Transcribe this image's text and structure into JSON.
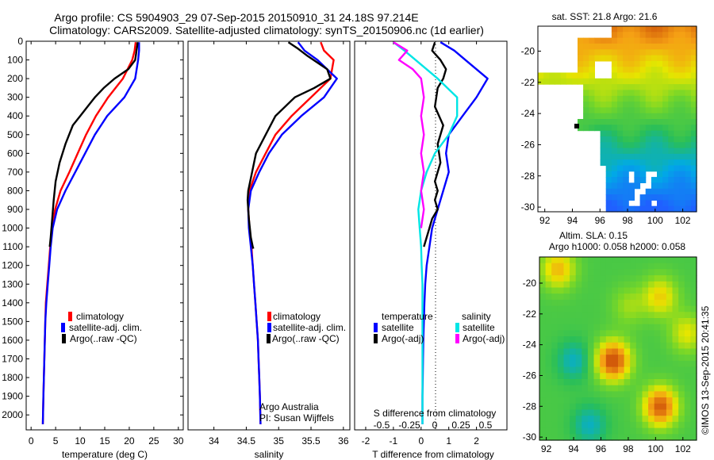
{
  "title_line1": "Argo profile: CS 5904903_29 07-Sep-2015 20150910_31 24.18S 97.214E",
  "title_line2": "Climatology: CARS2009. Satellite-adjusted climatology: synTS_20150906.nc (1d earlier)",
  "credit": "Argo Australia",
  "pi": "PI: Susan Wijffels",
  "stamp": "©IMOS 13-Sep-2015 20:41:35",
  "colors": {
    "clim": "#ff0000",
    "sat": "#0000ff",
    "argo": "#000000",
    "sat_salt": "#00e5e5",
    "argo_salt": "#ff00ff"
  },
  "chart_data": [
    {
      "type": "line",
      "xlabel": "temperature (deg C)",
      "ylabel": "",
      "xlim": [
        -1,
        31
      ],
      "ylim": [
        2080,
        0
      ],
      "y_reversed": true,
      "xticks": [
        0,
        5,
        10,
        15,
        20,
        25,
        30
      ],
      "yticks": [
        0,
        100,
        200,
        300,
        400,
        500,
        600,
        700,
        800,
        900,
        1000,
        1100,
        1200,
        1300,
        1400,
        1500,
        1600,
        1700,
        1800,
        1900,
        2000
      ],
      "legend": {
        "placement": "lower-left",
        "entries": [
          "climatology",
          "satellite-adj. clim.",
          "Argo(..raw -QC)"
        ]
      },
      "series": [
        {
          "name": "climatology",
          "color": "#ff0000",
          "x": [
            21.3,
            21.1,
            20.6,
            18.7,
            15.7,
            13.2,
            11.2,
            9.5,
            7.8,
            6.0,
            4.9,
            4.3,
            3.9,
            3.6,
            3.3,
            3.0,
            2.9,
            2.8,
            2.7,
            2.6,
            2.5,
            2.4
          ],
          "y": [
            5,
            50,
            100,
            200,
            300,
            400,
            500,
            600,
            700,
            800,
            900,
            1000,
            1100,
            1200,
            1300,
            1400,
            1500,
            1600,
            1700,
            1800,
            1900,
            2050
          ]
        },
        {
          "name": "satellite-adj. clim.",
          "color": "#0000ff",
          "x": [
            22.0,
            22.0,
            21.8,
            21.2,
            19.0,
            15.5,
            13.0,
            11.0,
            9.0,
            7.0,
            5.3,
            4.4,
            4.0,
            3.7,
            3.4,
            3.1,
            2.9,
            2.8,
            2.7,
            2.6,
            2.5,
            2.4
          ],
          "y": [
            5,
            50,
            100,
            200,
            300,
            400,
            500,
            600,
            700,
            800,
            900,
            1000,
            1100,
            1200,
            1300,
            1400,
            1500,
            1600,
            1700,
            1800,
            1900,
            2050
          ]
        },
        {
          "name": "Argo(..raw -QC)",
          "color": "#000000",
          "x": [
            21.7,
            21.6,
            21.2,
            19.8,
            17.0,
            14.8,
            13.0,
            11.5,
            10.0,
            8.5,
            7.0,
            5.8,
            5.0,
            4.6,
            4.3,
            4.0,
            3.8
          ],
          "y": [
            5,
            30,
            100,
            150,
            200,
            250,
            300,
            350,
            400,
            450,
            550,
            650,
            750,
            850,
            950,
            1050,
            1100
          ]
        }
      ]
    },
    {
      "type": "line",
      "xlabel": "salinity",
      "xlim": [
        33.6,
        36.1
      ],
      "ylim": [
        2080,
        0
      ],
      "y_reversed": true,
      "xticks": [
        34,
        34.5,
        35,
        35.5,
        36
      ],
      "legend": {
        "placement": "lower-left",
        "entries": [
          "climatology",
          "satellite-adj. clim.",
          "Argo(..raw -QC)"
        ]
      },
      "series": [
        {
          "name": "climatology",
          "color": "#ff0000",
          "x": [
            35.65,
            35.7,
            35.85,
            35.8,
            35.5,
            35.2,
            34.95,
            34.8,
            34.65,
            34.55,
            34.53,
            34.55,
            34.58,
            34.6,
            34.62,
            34.64,
            34.66,
            34.68,
            34.69,
            34.7,
            34.71,
            34.72
          ],
          "y": [
            5,
            50,
            100,
            200,
            300,
            400,
            500,
            600,
            700,
            800,
            900,
            1000,
            1100,
            1200,
            1300,
            1400,
            1500,
            1600,
            1700,
            1800,
            1900,
            2050
          ]
        },
        {
          "name": "satellite-adj. clim.",
          "color": "#0000ff",
          "x": [
            35.3,
            35.4,
            35.6,
            35.9,
            35.7,
            35.35,
            35.05,
            34.85,
            34.7,
            34.57,
            34.53,
            34.54,
            34.57,
            34.6,
            34.62,
            34.64,
            34.66,
            34.68,
            34.69,
            34.7,
            34.71,
            34.72
          ],
          "y": [
            5,
            50,
            100,
            200,
            300,
            400,
            500,
            600,
            700,
            800,
            900,
            1000,
            1100,
            1200,
            1300,
            1400,
            1500,
            1600,
            1700,
            1800,
            1900,
            2050
          ]
        },
        {
          "name": "Argo(..raw -QC)",
          "color": "#000000",
          "x": [
            35.15,
            35.3,
            35.45,
            35.75,
            35.8,
            35.55,
            35.25,
            34.95,
            34.8,
            34.65,
            34.53,
            34.52,
            34.54,
            34.57,
            34.6,
            34.61
          ],
          "y": [
            5,
            40,
            80,
            150,
            200,
            250,
            300,
            400,
            500,
            600,
            800,
            850,
            950,
            1050,
            1100,
            1110
          ]
        }
      ]
    },
    {
      "type": "line",
      "xlabel": "T difference from climatology",
      "top_axis_label": "S difference from climatology",
      "xlim": [
        -2.4,
        3.1
      ],
      "ylim": [
        2080,
        0
      ],
      "y_reversed": true,
      "xticks": [
        -2,
        -1,
        0,
        1,
        2
      ],
      "top_xticks": [
        "-0.5",
        "-0.25",
        "0",
        "0.25",
        "0.5"
      ],
      "legend": {
        "placement": "lower-left",
        "temperature_heading": "temperature",
        "salinity_heading": "salinity",
        "entries": [
          "satellite",
          "Argo(-adj)",
          "satellite",
          "Argo(-adj)"
        ]
      },
      "series": [
        {
          "name": "temperature satellite",
          "color": "#0000ff",
          "x": [
            0.7,
            1.2,
            1.6,
            2.4,
            2.0,
            1.5,
            1.0,
            0.9,
            1.0,
            0.8,
            0.6,
            0.4,
            0.3,
            0.2,
            0.15,
            0.12,
            0.1,
            0.08,
            0.07,
            0.06,
            0.05,
            0.05
          ],
          "y": [
            5,
            50,
            100,
            200,
            300,
            400,
            500,
            600,
            700,
            800,
            900,
            1000,
            1100,
            1200,
            1300,
            1400,
            1500,
            1600,
            1700,
            1800,
            1900,
            2050
          ]
        },
        {
          "name": "temperature Argo(-adj)",
          "color": "#000000",
          "x": [
            0.5,
            0.4,
            0.7,
            0.9,
            0.8,
            0.6,
            0.5,
            0.8,
            0.6,
            0.7,
            0.5,
            0.6,
            0.5,
            0.6,
            0.4,
            0.3,
            0.2,
            0.1
          ],
          "y": [
            5,
            50,
            100,
            150,
            200,
            250,
            350,
            450,
            550,
            650,
            750,
            800,
            850,
            900,
            950,
            1000,
            1050,
            1100
          ]
        },
        {
          "name": "salinity satellite",
          "color": "#00e5e5",
          "x": [
            -1.0,
            -0.6,
            -0.2,
            0.6,
            1.3,
            1.3,
            1.0,
            0.5,
            0.2,
            0.0,
            -0.1,
            -0.05,
            0.0,
            0.02,
            0.05,
            0.05,
            0.05,
            0.05,
            0.05,
            0.05,
            0.05,
            0.05
          ],
          "y": [
            5,
            50,
            100,
            200,
            300,
            400,
            500,
            600,
            700,
            800,
            900,
            1000,
            1100,
            1200,
            1300,
            1400,
            1500,
            1600,
            1700,
            1800,
            1900,
            2050
          ]
        },
        {
          "name": "salinity Argo(-adj)",
          "color": "#ff00ff",
          "x": [
            -1.0,
            -0.5,
            -0.8,
            -0.3,
            0.0,
            0.1,
            0.0,
            0.1,
            0.0,
            0.1,
            0.0,
            0.1,
            0.0
          ],
          "y": [
            5,
            50,
            100,
            150,
            200,
            300,
            400,
            500,
            600,
            700,
            800,
            900,
            1000
          ]
        }
      ]
    },
    {
      "type": "heatmap",
      "title": "sat. SST: 21.8 Argo: 21.6",
      "xlim": [
        91.5,
        103
      ],
      "ylim": [
        -30.3,
        -18.4
      ],
      "xticks": [
        92,
        94,
        96,
        98,
        100,
        102
      ],
      "yticks": [
        -20,
        -22,
        -24,
        -26,
        -28,
        -30
      ]
    },
    {
      "type": "heatmap",
      "title_line1": "Altim. SLA: 0.15",
      "title_line2": "Argo h1000: 0.058 h2000: 0.058",
      "xlim": [
        91.5,
        103
      ],
      "ylim": [
        -30.2,
        -18.3
      ],
      "xticks": [
        92,
        94,
        96,
        98,
        100,
        102
      ],
      "yticks": [
        -20,
        -22,
        -24,
        -26,
        -28,
        -30
      ]
    }
  ]
}
